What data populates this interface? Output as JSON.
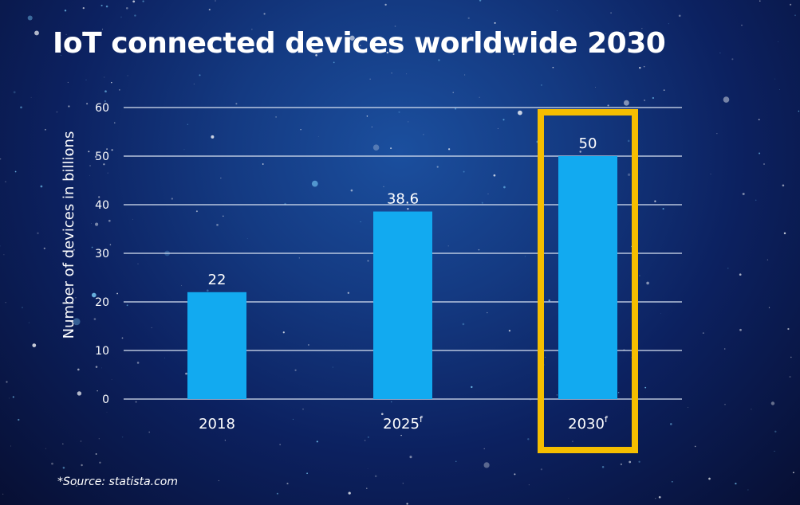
{
  "colors": {
    "bar": "#12aaf0",
    "grid": "#d9e3f2",
    "highlight": "#f5be00",
    "text": "#ffffff"
  },
  "chart_data": {
    "type": "bar",
    "title": "IoT connected devices worldwide 2030",
    "ylabel": "Number of devices in billions",
    "xlabel": "",
    "categories": [
      "2018",
      "2025",
      "2030"
    ],
    "category_superscripts": [
      "",
      "f",
      "f"
    ],
    "values": [
      22,
      38.6,
      50
    ],
    "value_labels": [
      "22",
      "38.6",
      "50"
    ],
    "ylim": [
      0,
      60
    ],
    "yticks": [
      0,
      10,
      20,
      30,
      40,
      50,
      60
    ],
    "grid": true,
    "highlighted_category": "2030"
  },
  "footer": {
    "source": "*Source: statista.com"
  }
}
